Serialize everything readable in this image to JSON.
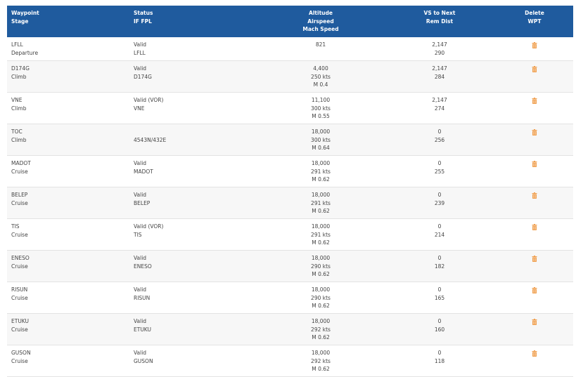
{
  "header": [
    [
      "Waypoint",
      "Stage"
    ],
    [
      "Status",
      "IF FPL"
    ],
    [
      "Altitude",
      "Airspeed",
      "Mach Speed"
    ],
    [
      "VS to Next",
      "Rem Dist"
    ],
    [
      "Delete",
      "WPT"
    ]
  ],
  "rows": [
    {
      "waypoint": "LFLL",
      "stage": "Departure",
      "status": "Valid",
      "fpl": "LFLL",
      "altitude": "821",
      "vs": "2,147",
      "rem_dist": "290"
    },
    {
      "waypoint": "D174G",
      "stage": "Climb",
      "status": "Valid",
      "fpl": "D174G",
      "altitude": "4,400",
      "airspeed": "250 kts",
      "mach": "M 0.4",
      "vs": "2,147",
      "rem_dist": "284"
    },
    {
      "waypoint": "VNE",
      "stage": "Climb",
      "status": "Valid (VOR)",
      "fpl": "VNE",
      "altitude": "11,100",
      "airspeed": "300 kts",
      "mach": "M 0.55",
      "vs": "2,147",
      "rem_dist": "274"
    },
    {
      "waypoint": "TOC",
      "stage": "Climb",
      "fpl": "4543N/432E",
      "altitude": "18,000",
      "airspeed": "300 kts",
      "mach": "M 0.64",
      "vs": "0",
      "rem_dist": "256"
    },
    {
      "waypoint": "MADOT",
      "stage": "Cruise",
      "status": "Valid",
      "fpl": "MADOT",
      "altitude": "18,000",
      "airspeed": "291 kts",
      "mach": "M 0.62",
      "vs": "0",
      "rem_dist": "255"
    },
    {
      "waypoint": "BELEP",
      "stage": "Cruise",
      "status": "Valid",
      "fpl": "BELEP",
      "altitude": "18,000",
      "airspeed": "291 kts",
      "mach": "M 0.62",
      "vs": "0",
      "rem_dist": "239"
    },
    {
      "waypoint": "TIS",
      "stage": "Cruise",
      "status": "Valid (VOR)",
      "fpl": "TIS",
      "altitude": "18,000",
      "airspeed": "291 kts",
      "mach": "M 0.62",
      "vs": "0",
      "rem_dist": "214"
    },
    {
      "waypoint": "ENESO",
      "stage": "Cruise",
      "status": "Valid",
      "fpl": "ENESO",
      "altitude": "18,000",
      "airspeed": "290 kts",
      "mach": "M 0.62",
      "vs": "0",
      "rem_dist": "182"
    },
    {
      "waypoint": "RISUN",
      "stage": "Cruise",
      "status": "Valid",
      "fpl": "RISUN",
      "altitude": "18,000",
      "airspeed": "290 kts",
      "mach": "M 0.62",
      "vs": "0",
      "rem_dist": "165"
    },
    {
      "waypoint": "ETUKU",
      "stage": "Cruise",
      "status": "Valid",
      "fpl": "ETUKU",
      "altitude": "18,000",
      "airspeed": "292 kts",
      "mach": "M 0.62",
      "vs": "0",
      "rem_dist": "160"
    },
    {
      "waypoint": "GUSON",
      "stage": "Cruise",
      "status": "Valid",
      "fpl": "GUSON",
      "altitude": "18,000",
      "airspeed": "292 kts",
      "mach": "M 0.62",
      "vs": "0",
      "rem_dist": "118"
    }
  ]
}
